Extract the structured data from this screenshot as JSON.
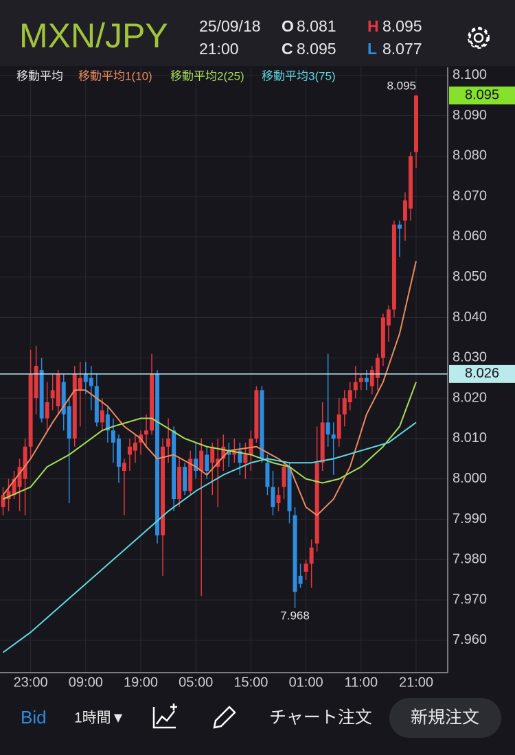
{
  "header": {
    "pair": "MXN/JPY",
    "date": "25/09/18",
    "time": "21:00",
    "open_label": "O",
    "close_label": "C",
    "high_label": "H",
    "low_label": "L"
  },
  "chart_data": {
    "type": "candlestick",
    "legend_title": "移動平均",
    "categories": [
      null,
      null,
      null,
      null,
      null,
      "23:00",
      null,
      null,
      null,
      null,
      null,
      null,
      null,
      null,
      null,
      "09:00",
      null,
      null,
      null,
      null,
      null,
      null,
      null,
      null,
      null,
      "19:00",
      null,
      null,
      null,
      null,
      null,
      null,
      null,
      null,
      null,
      "05:00",
      null,
      null,
      null,
      null,
      null,
      null,
      null,
      null,
      null,
      "15:00",
      null,
      null,
      null,
      null,
      null,
      null,
      null,
      null,
      null,
      "01:00",
      null,
      null,
      null,
      null,
      null,
      null,
      null,
      null,
      null,
      "11:00",
      null,
      null,
      null,
      null,
      null,
      null,
      null,
      null,
      null,
      "21:00"
    ],
    "open": [
      7.993,
      7.995,
      7.996,
      7.998,
      8.0,
      8.008,
      8.02,
      8.027,
      8.015,
      8.02,
      8.018,
      8.024,
      8.018,
      8.01,
      8.022,
      8.026,
      8.025,
      8.023,
      8.014,
      8.016,
      8.012,
      8.01,
      8.002,
      8.006,
      8.007,
      8.009,
      8.011,
      8.012,
      8.026,
      7.986,
      8.008,
      8.012,
      7.995,
      8.003,
      7.997,
      8.005,
      8.002,
      8.006,
      8.004,
      8.003,
      8.005,
      8.007,
      8.006,
      8.007,
      8.004,
      8.006,
      8.01,
      8.022,
      8.004,
      7.998,
      7.994,
      7.998,
      8.003,
      7.991,
      7.976,
      7.977,
      7.979,
      7.984,
      8.004,
      8.014,
      8.011,
      8.01,
      8.016,
      8.019,
      8.022,
      8.024,
      8.025,
      8.023,
      8.025,
      8.03,
      8.038,
      8.042,
      8.063,
      8.064,
      8.067,
      8.081
    ],
    "high": [
      7.998,
      8.0,
      8.002,
      8.005,
      8.01,
      8.032,
      8.033,
      8.03,
      8.024,
      8.026,
      8.027,
      8.026,
      8.02,
      8.028,
      8.029,
      8.029,
      8.028,
      8.026,
      8.02,
      8.018,
      8.015,
      8.011,
      8.005,
      8.01,
      8.011,
      8.012,
      8.016,
      8.031,
      8.027,
      8.01,
      8.015,
      8.013,
      8.005,
      8.004,
      8.007,
      8.009,
      8.01,
      8.008,
      8.009,
      8.01,
      8.011,
      8.009,
      8.01,
      8.009,
      8.009,
      8.012,
      8.023,
      8.023,
      8.006,
      8.002,
      7.998,
      8.004,
      8.004,
      7.993,
      7.979,
      7.98,
      7.985,
      8.013,
      8.019,
      8.031,
      8.014,
      8.02,
      8.022,
      8.024,
      8.028,
      8.026,
      8.027,
      8.028,
      8.031,
      8.041,
      8.043,
      8.064,
      8.064,
      8.071,
      8.081,
      8.095
    ],
    "low": [
      7.991,
      7.992,
      7.995,
      7.992,
      7.991,
      8.005,
      8.016,
      8.014,
      8.012,
      8.017,
      8.016,
      8.012,
      7.994,
      8.008,
      8.013,
      8.021,
      8.017,
      8.013,
      8.012,
      8.009,
      8.004,
      7.999,
      7.991,
      8.002,
      8.004,
      8.006,
      8.008,
      8.011,
      7.984,
      7.976,
      8.004,
      7.992,
      7.993,
      7.996,
      7.996,
      8.0,
      7.971,
      8.0,
      7.996,
      7.993,
      8.002,
      8.003,
      8.004,
      8.001,
      8.0,
      8.002,
      8.009,
      8.004,
      7.996,
      7.991,
      7.992,
      7.995,
      7.989,
      7.968,
      7.973,
      7.975,
      7.973,
      7.982,
      8.002,
      8.008,
      8.001,
      8.008,
      8.013,
      8.017,
      8.02,
      8.022,
      8.022,
      8.021,
      8.022,
      8.028,
      8.034,
      8.04,
      8.055,
      8.059,
      8.064,
      8.077
    ],
    "close": [
      7.996,
      7.997,
      8.0,
      8.003,
      8.008,
      8.026,
      8.028,
      8.015,
      8.019,
      8.022,
      8.026,
      8.016,
      8.01,
      8.026,
      8.025,
      8.024,
      8.023,
      8.014,
      8.017,
      8.012,
      8.009,
      8.003,
      8.004,
      8.008,
      8.009,
      8.011,
      8.012,
      8.026,
      7.986,
      8.008,
      8.01,
      7.995,
      8.003,
      7.997,
      8.005,
      8.002,
      8.007,
      8.002,
      8.008,
      8.005,
      8.008,
      8.006,
      8.007,
      8.004,
      8.006,
      8.01,
      8.022,
      8.005,
      7.998,
      7.993,
      7.996,
      8.003,
      7.992,
      7.972,
      7.974,
      7.979,
      7.983,
      8.004,
      8.014,
      8.011,
      8.01,
      8.016,
      8.02,
      8.022,
      8.024,
      8.025,
      8.024,
      8.027,
      8.03,
      8.04,
      8.042,
      8.063,
      8.062,
      8.069,
      8.08,
      8.095
    ],
    "up_color": "#e3383d",
    "down_color": "#2e8de0",
    "series": [
      {
        "name": "移動平均1(10)",
        "color": "#ee8a5e",
        "x": [
          0,
          5,
          9,
          13,
          15,
          19,
          22,
          25,
          26,
          28,
          31,
          35,
          37,
          41,
          46,
          50,
          52,
          55,
          57,
          60,
          63,
          66,
          69,
          72,
          75
        ],
        "values": [
          7.996,
          8.005,
          8.014,
          8.022,
          8.022,
          8.018,
          8.013,
          8.01,
          8.008,
          8.005,
          8.006,
          8.003,
          8.001,
          8.007,
          8.008,
          8.005,
          8.003,
          7.993,
          7.991,
          7.995,
          8.003,
          8.016,
          8.024,
          8.036,
          8.054
        ]
      },
      {
        "name": "移動平均2(25)",
        "color": "#a7de5a",
        "x": [
          0,
          5,
          8,
          12,
          18,
          20,
          25,
          27,
          33,
          37,
          45,
          49,
          52,
          55,
          58,
          61,
          65,
          69,
          72,
          75
        ],
        "values": [
          7.995,
          7.998,
          8.003,
          8.006,
          8.012,
          8.013,
          8.015,
          8.015,
          8.01,
          8.008,
          8.006,
          8.004,
          8.003,
          8.0,
          7.999,
          8.0,
          8.003,
          8.008,
          8.013,
          8.024
        ]
      },
      {
        "name": "移動平均3(75)",
        "color": "#5fd9e0",
        "x": [
          0,
          5,
          10,
          15,
          20,
          25,
          30,
          35,
          40,
          45,
          48,
          52,
          56,
          60,
          65,
          70,
          75
        ],
        "values": [
          7.957,
          7.962,
          7.968,
          7.974,
          7.98,
          7.986,
          7.992,
          7.997,
          8.001,
          8.004,
          8.005,
          8.004,
          8.004,
          8.005,
          8.007,
          8.009,
          8.014
        ]
      }
    ],
    "ylim": [
      7.952,
      8.102
    ],
    "yticks": [
      {
        "value": 8.1,
        "label": "8.100"
      },
      {
        "value": 8.09,
        "label": "8.090"
      },
      {
        "value": 8.08,
        "label": "8.080"
      },
      {
        "value": 8.07,
        "label": "8.070"
      },
      {
        "value": 8.06,
        "label": "8.060"
      },
      {
        "value": 8.05,
        "label": "8.050"
      },
      {
        "value": 8.04,
        "label": "8.040"
      },
      {
        "value": 8.03,
        "label": "8.030"
      },
      {
        "value": 8.02,
        "label": "8.020"
      },
      {
        "value": 8.01,
        "label": "8.010"
      },
      {
        "value": 8.0,
        "label": "8.000"
      },
      {
        "value": 7.99,
        "label": "7.990"
      },
      {
        "value": 7.98,
        "label": "7.980"
      },
      {
        "value": 7.97,
        "label": "7.970"
      },
      {
        "value": 7.96,
        "label": "7.960"
      }
    ],
    "grid": true,
    "current_price": 8.026,
    "current_color": "#b9eaec",
    "last_color": "#86e02c"
  },
  "toolbar": {
    "price_type": "Bid",
    "interval": "1時間▼",
    "chart_order": "チャート注文",
    "new_order": "新規注文"
  }
}
